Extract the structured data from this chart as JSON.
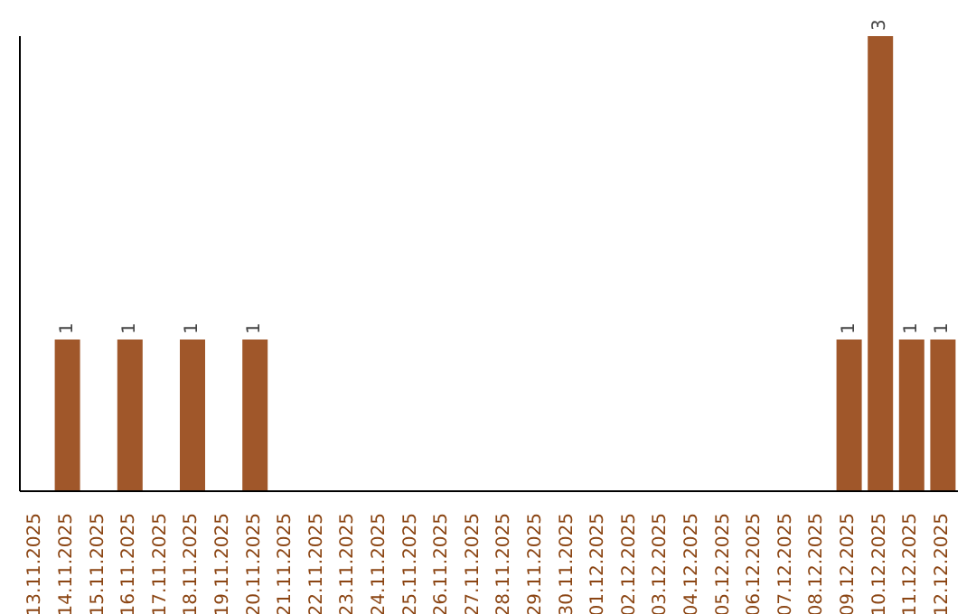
{
  "chart_data": {
    "type": "bar",
    "categories": [
      "13.11.2025",
      "14.11.2025",
      "15.11.2025",
      "16.11.2025",
      "17.11.2025",
      "18.11.2025",
      "19.11.2025",
      "20.11.2025",
      "21.11.2025",
      "22.11.2025",
      "23.11.2025",
      "24.11.2025",
      "25.11.2025",
      "26.11.2025",
      "27.11.2025",
      "28.11.2025",
      "29.11.2025",
      "30.11.2025",
      "01.12.2025",
      "02.12.2025",
      "03.12.2025",
      "04.12.2025",
      "05.12.2025",
      "06.12.2025",
      "07.12.2025",
      "08.12.2025",
      "09.12.2025",
      "10.12.2025",
      "11.12.2025",
      "12.12.2025"
    ],
    "values": [
      0,
      1,
      0,
      1,
      0,
      1,
      0,
      1,
      0,
      0,
      0,
      0,
      0,
      0,
      0,
      0,
      0,
      0,
      0,
      0,
      0,
      0,
      0,
      0,
      0,
      0,
      1,
      3,
      1,
      1
    ],
    "value_labels": [
      null,
      "1",
      null,
      "1",
      null,
      "1",
      null,
      "1",
      null,
      null,
      null,
      null,
      null,
      null,
      null,
      null,
      null,
      null,
      null,
      null,
      null,
      null,
      null,
      null,
      null,
      null,
      "1",
      "3",
      "1",
      "1"
    ],
    "color": "#a0572a",
    "grid": false,
    "legend": false
  }
}
